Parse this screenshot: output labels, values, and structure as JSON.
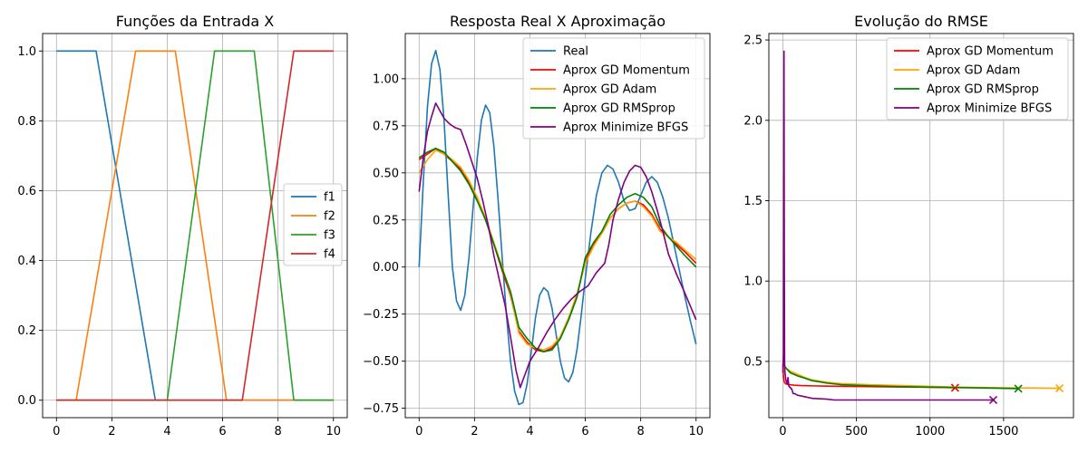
{
  "chart_data": [
    {
      "type": "line",
      "title": "Funções da Entrada X",
      "xlabel": "",
      "ylabel": "",
      "xlim": [
        -0.5,
        10.5
      ],
      "ylim": [
        -0.05,
        1.05
      ],
      "xticks": [
        0,
        2,
        4,
        6,
        8,
        10
      ],
      "xtick_labels": [
        "0",
        "2",
        "4",
        "6",
        "8",
        "10"
      ],
      "yticks": [
        0.0,
        0.2,
        0.4,
        0.6,
        0.8,
        1.0
      ],
      "ytick_labels": [
        "0.0",
        "0.2",
        "0.4",
        "0.6",
        "0.8",
        "1.0"
      ],
      "grid": true,
      "legend": "center-right",
      "series": [
        {
          "name": "f1",
          "color": "#1f77b4",
          "x": [
            0,
            1.43,
            3.57,
            10
          ],
          "y": [
            1,
            1,
            0,
            0
          ]
        },
        {
          "name": "f2",
          "color": "#ff7f0e",
          "x": [
            0,
            0.71,
            2.86,
            4.29,
            6.14,
            10
          ],
          "y": [
            0,
            0,
            1,
            1,
            0,
            0
          ]
        },
        {
          "name": "f3",
          "color": "#2ca02c",
          "x": [
            0,
            4.0,
            5.71,
            7.14,
            8.57,
            10
          ],
          "y": [
            0,
            0,
            1,
            1,
            0,
            0
          ]
        },
        {
          "name": "f4",
          "color": "#d62728",
          "x": [
            0,
            6.71,
            8.57,
            10
          ],
          "y": [
            0,
            0,
            1,
            1
          ]
        }
      ]
    },
    {
      "type": "line",
      "title": "Resposta Real X Aproximação",
      "xlabel": "",
      "ylabel": "",
      "xlim": [
        -0.5,
        10.5
      ],
      "ylim": [
        -0.8,
        1.24
      ],
      "xticks": [
        0,
        2,
        4,
        6,
        8,
        10
      ],
      "xtick_labels": [
        "0",
        "2",
        "4",
        "6",
        "8",
        "10"
      ],
      "yticks": [
        -0.75,
        -0.5,
        -0.25,
        0.0,
        0.25,
        0.5,
        0.75,
        1.0
      ],
      "ytick_labels": [
        "−0.75",
        "−0.50",
        "−0.25",
        "0.00",
        "0.25",
        "0.50",
        "0.75",
        "1.00"
      ],
      "grid": true,
      "legend": "upper-right",
      "series": [
        {
          "name": "Real",
          "color": "#1f77b4",
          "x": [
            0,
            0.15,
            0.3,
            0.45,
            0.6,
            0.75,
            0.9,
            1.05,
            1.2,
            1.35,
            1.5,
            1.65,
            1.8,
            1.95,
            2.1,
            2.25,
            2.4,
            2.55,
            2.7,
            2.85,
            3.0,
            3.15,
            3.3,
            3.45,
            3.6,
            3.75,
            3.9,
            4.05,
            4.2,
            4.35,
            4.5,
            4.65,
            4.8,
            4.95,
            5.1,
            5.25,
            5.4,
            5.55,
            5.7,
            5.85,
            6.0,
            6.2,
            6.4,
            6.6,
            6.8,
            7.0,
            7.2,
            7.4,
            7.6,
            7.8,
            8.0,
            8.2,
            8.4,
            8.6,
            8.8,
            9.0,
            9.2,
            9.4,
            9.6,
            9.8,
            10.0
          ],
          "y": [
            0.0,
            0.45,
            0.85,
            1.08,
            1.15,
            1.05,
            0.78,
            0.38,
            0.0,
            -0.18,
            -0.23,
            -0.15,
            0.05,
            0.32,
            0.58,
            0.78,
            0.86,
            0.82,
            0.64,
            0.36,
            0.05,
            -0.25,
            -0.5,
            -0.66,
            -0.73,
            -0.72,
            -0.62,
            -0.45,
            -0.27,
            -0.15,
            -0.11,
            -0.13,
            -0.22,
            -0.36,
            -0.5,
            -0.59,
            -0.61,
            -0.56,
            -0.44,
            -0.26,
            -0.06,
            0.18,
            0.38,
            0.5,
            0.54,
            0.52,
            0.45,
            0.35,
            0.3,
            0.31,
            0.38,
            0.45,
            0.48,
            0.45,
            0.37,
            0.26,
            0.12,
            -0.02,
            -0.16,
            -0.29,
            -0.41
          ]
        },
        {
          "name": "Aprox GD Momentum",
          "color": "#ff0000",
          "x": [
            0,
            0.3,
            0.6,
            0.9,
            1.2,
            1.5,
            1.8,
            2.1,
            2.4,
            2.7,
            3.0,
            3.3,
            3.6,
            3.9,
            4.2,
            4.5,
            4.8,
            5.1,
            5.4,
            5.7,
            6.0,
            6.3,
            6.6,
            6.9,
            7.2,
            7.5,
            7.8,
            8.1,
            8.4,
            8.7,
            9.0,
            9.3,
            9.6,
            10.0
          ],
          "y": [
            0.57,
            0.6,
            0.63,
            0.6,
            0.56,
            0.52,
            0.45,
            0.36,
            0.25,
            0.12,
            -0.02,
            -0.15,
            -0.34,
            -0.4,
            -0.44,
            -0.45,
            -0.43,
            -0.37,
            -0.27,
            -0.15,
            0.03,
            0.12,
            0.18,
            0.26,
            0.31,
            0.34,
            0.35,
            0.33,
            0.28,
            0.2,
            0.16,
            0.12,
            0.08,
            0.02
          ]
        },
        {
          "name": "Aprox GD Adam",
          "color": "#ffa500",
          "x": [
            0,
            0.3,
            0.6,
            0.9,
            1.2,
            1.5,
            1.8,
            2.1,
            2.4,
            2.7,
            3.0,
            3.3,
            3.6,
            3.9,
            4.2,
            4.5,
            4.8,
            5.1,
            5.4,
            5.7,
            6.0,
            6.3,
            6.6,
            6.9,
            7.2,
            7.5,
            7.8,
            8.1,
            8.4,
            8.7,
            9.0,
            9.3,
            9.6,
            10.0
          ],
          "y": [
            0.5,
            0.57,
            0.62,
            0.6,
            0.57,
            0.53,
            0.46,
            0.37,
            0.26,
            0.13,
            0.0,
            -0.14,
            -0.35,
            -0.41,
            -0.43,
            -0.44,
            -0.42,
            -0.37,
            -0.27,
            -0.14,
            0.02,
            0.11,
            0.18,
            0.26,
            0.31,
            0.34,
            0.35,
            0.32,
            0.27,
            0.19,
            0.16,
            0.13,
            0.09,
            0.04
          ]
        },
        {
          "name": "Aprox GD RMSprop",
          "color": "#008000",
          "x": [
            0,
            0.3,
            0.6,
            0.9,
            1.2,
            1.5,
            1.8,
            2.1,
            2.4,
            2.7,
            3.0,
            3.3,
            3.6,
            3.9,
            4.2,
            4.5,
            4.8,
            5.1,
            5.4,
            5.7,
            6.0,
            6.3,
            6.6,
            6.9,
            7.2,
            7.5,
            7.8,
            8.1,
            8.4,
            8.7,
            9.0,
            9.3,
            9.6,
            10.0
          ],
          "y": [
            0.58,
            0.61,
            0.63,
            0.61,
            0.56,
            0.51,
            0.44,
            0.35,
            0.25,
            0.12,
            -0.01,
            -0.13,
            -0.32,
            -0.38,
            -0.43,
            -0.45,
            -0.44,
            -0.38,
            -0.28,
            -0.16,
            0.05,
            0.13,
            0.19,
            0.28,
            0.33,
            0.37,
            0.39,
            0.37,
            0.32,
            0.22,
            0.16,
            0.11,
            0.06,
            0.0
          ]
        },
        {
          "name": "Aprox Minimize BFGS",
          "color": "#800080",
          "x": [
            0,
            0.15,
            0.3,
            0.45,
            0.6,
            0.75,
            0.9,
            1.1,
            1.3,
            1.5,
            1.7,
            1.9,
            2.1,
            2.3,
            2.5,
            2.7,
            2.9,
            3.1,
            3.3,
            3.5,
            3.65,
            3.8,
            4.0,
            4.3,
            4.6,
            4.9,
            5.2,
            5.5,
            5.8,
            6.1,
            6.4,
            6.7,
            6.85,
            7.0,
            7.2,
            7.4,
            7.6,
            7.8,
            8.0,
            8.2,
            8.4,
            8.6,
            8.8,
            9.0,
            9.3,
            9.6,
            10.0
          ],
          "y": [
            0.4,
            0.58,
            0.72,
            0.8,
            0.87,
            0.83,
            0.79,
            0.76,
            0.74,
            0.73,
            0.65,
            0.56,
            0.47,
            0.35,
            0.22,
            0.06,
            -0.07,
            -0.2,
            -0.37,
            -0.55,
            -0.64,
            -0.58,
            -0.5,
            -0.43,
            -0.35,
            -0.28,
            -0.22,
            -0.17,
            -0.13,
            -0.1,
            -0.03,
            0.02,
            0.12,
            0.25,
            0.36,
            0.45,
            0.51,
            0.54,
            0.53,
            0.48,
            0.4,
            0.3,
            0.19,
            0.07,
            -0.04,
            -0.14,
            -0.28
          ]
        }
      ]
    },
    {
      "type": "line",
      "title": "Evolução do RMSE",
      "xlabel": "",
      "ylabel": "",
      "xlim": [
        -95,
        1975
      ],
      "ylim": [
        0.15,
        2.54
      ],
      "xticks": [
        0,
        500,
        1000,
        1500
      ],
      "xtick_labels": [
        "0",
        "500",
        "1000",
        "1500"
      ],
      "yticks": [
        0.5,
        1.0,
        1.5,
        2.0,
        2.5
      ],
      "ytick_labels": [
        "0.5",
        "1.0",
        "1.5",
        "2.0",
        "2.5"
      ],
      "grid": true,
      "legend": "upper-right",
      "end_marker": "x",
      "series": [
        {
          "name": "Aprox GD Momentum",
          "color": "#ff0000",
          "x": [
            0,
            5,
            10,
            20,
            30,
            50,
            80,
            120,
            200,
            300,
            500,
            700,
            900,
            1100,
            1170
          ],
          "y": [
            0.48,
            0.4,
            0.37,
            0.36,
            0.358,
            0.355,
            0.352,
            0.35,
            0.348,
            0.346,
            0.344,
            0.342,
            0.34,
            0.338,
            0.336
          ]
        },
        {
          "name": "Aprox GD Adam",
          "color": "#ffa500",
          "x": [
            0,
            20,
            50,
            100,
            150,
            200,
            300,
            400,
            600,
            800,
            1000,
            1200,
            1400,
            1600,
            1880
          ],
          "y": [
            0.48,
            0.46,
            0.44,
            0.42,
            0.4,
            0.385,
            0.37,
            0.362,
            0.355,
            0.35,
            0.345,
            0.34,
            0.337,
            0.335,
            0.333
          ]
        },
        {
          "name": "Aprox GD RMSprop",
          "color": "#008000",
          "x": [
            0,
            20,
            50,
            100,
            150,
            200,
            300,
            400,
            600,
            800,
            1000,
            1200,
            1400,
            1600
          ],
          "y": [
            0.49,
            0.46,
            0.43,
            0.41,
            0.395,
            0.38,
            0.365,
            0.355,
            0.348,
            0.343,
            0.34,
            0.337,
            0.334,
            0.331
          ]
        },
        {
          "name": "Aprox Minimize BFGS",
          "color": "#800080",
          "x": [
            0,
            4,
            8,
            10,
            12,
            14,
            18,
            22,
            26,
            30,
            35,
            40,
            45,
            50,
            55,
            60,
            70,
            80,
            100,
            150,
            200,
            300,
            350,
            500,
            800,
            1100,
            1430
          ],
          "y": [
            0.43,
            0.55,
            2.43,
            1.2,
            0.5,
            0.44,
            0.4,
            0.38,
            0.37,
            0.36,
            0.4,
            0.35,
            0.34,
            0.34,
            0.33,
            0.33,
            0.3,
            0.3,
            0.29,
            0.28,
            0.27,
            0.265,
            0.26,
            0.26,
            0.26,
            0.26,
            0.26
          ]
        }
      ]
    }
  ]
}
